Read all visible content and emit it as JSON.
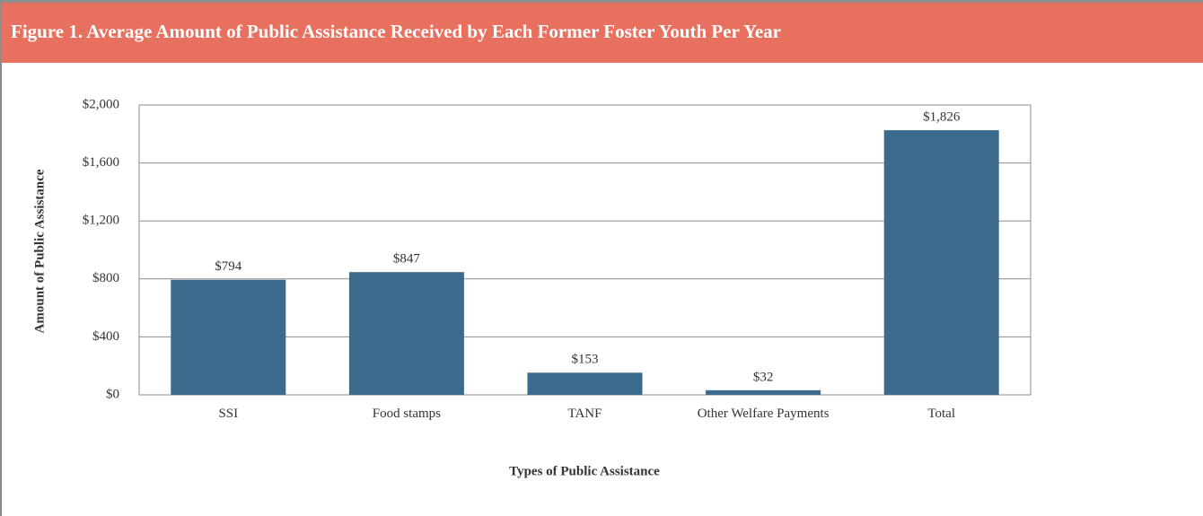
{
  "chart_data": {
    "type": "bar",
    "title": "Figure 1.  Average Amount of Public Assistance Received by Each Former Foster Youth Per Year",
    "categories": [
      "SSI",
      "Food stamps",
      "TANF",
      "Other Welfare Payments",
      "Total"
    ],
    "values": [
      794,
      847,
      153,
      32,
      1826
    ],
    "value_labels": [
      "$794",
      "$847",
      "$153",
      "$32",
      "$1,826"
    ],
    "color": "#3b6a8c",
    "ylim": [
      0,
      2000
    ],
    "yticks": [
      {
        "value": 0,
        "label": "$0"
      },
      {
        "value": 400,
        "label": "$400"
      },
      {
        "value": 800,
        "label": "$800"
      },
      {
        "value": 1200,
        "label": "$1,200"
      },
      {
        "value": 1600,
        "label": "$1,600"
      },
      {
        "value": 2000,
        "label": "$2,000"
      }
    ],
    "grid": true,
    "x_label": "Types of Public Assistance",
    "y_label": "Amount of Public Assistance"
  }
}
